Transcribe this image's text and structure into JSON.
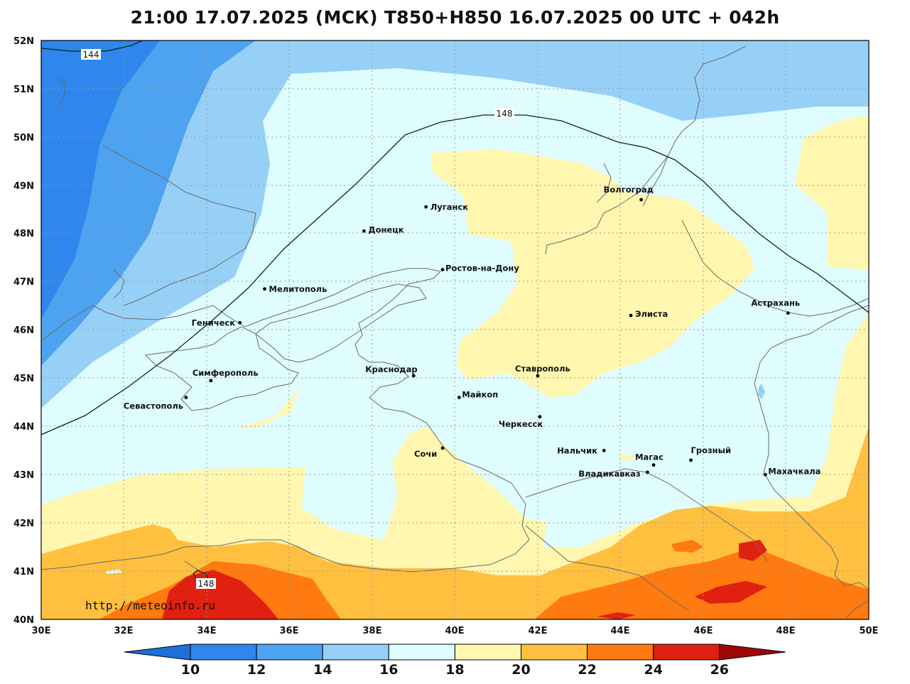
{
  "title": "21:00 17.07.2025 (МСК) T850+H850 16.07.2025 00 UTC + 042h",
  "watermark": "http://meteoinfo.ru",
  "axes": {
    "lat_labels": [
      "52N",
      "51N",
      "50N",
      "49N",
      "48N",
      "47N",
      "46N",
      "45N",
      "44N",
      "43N",
      "42N",
      "41N",
      "40N"
    ],
    "lon_labels": [
      "30E",
      "32E",
      "34E",
      "36E",
      "38E",
      "40E",
      "42E",
      "44E",
      "46E",
      "48E",
      "50E"
    ]
  },
  "contour_labels": [
    "144",
    "148",
    "148"
  ],
  "legend": {
    "ticks": [
      "10",
      "12",
      "14",
      "16",
      "18",
      "20",
      "22",
      "24",
      "26"
    ],
    "colors": [
      "#1e6fd9",
      "#2f86ec",
      "#4da3f0",
      "#97d0f7",
      "#dffcff",
      "#fff7b0",
      "#ffc040",
      "#ff7a10",
      "#e02010",
      "#a00808"
    ]
  },
  "cities": [
    {
      "name": "Луганск",
      "lon": 39.3,
      "lat": 48.55
    },
    {
      "name": "Донецк",
      "lon": 37.8,
      "lat": 48.05
    },
    {
      "name": "Волгоград",
      "lon": 44.5,
      "lat": 48.7
    },
    {
      "name": "Ростов-на-Дону",
      "lon": 39.7,
      "lat": 47.25
    },
    {
      "name": "Мелитополь",
      "lon": 35.4,
      "lat": 46.85
    },
    {
      "name": "Элиста",
      "lon": 44.25,
      "lat": 46.3
    },
    {
      "name": "Астрахань",
      "lon": 48.05,
      "lat": 46.35
    },
    {
      "name": "Геническ",
      "lon": 34.8,
      "lat": 46.15
    },
    {
      "name": "Краснодар",
      "lon": 39.0,
      "lat": 45.05
    },
    {
      "name": "Ставрополь",
      "lon": 42.0,
      "lat": 45.05
    },
    {
      "name": "Симферополь",
      "lon": 34.1,
      "lat": 44.95
    },
    {
      "name": "Майкоп",
      "lon": 40.1,
      "lat": 44.6
    },
    {
      "name": "Севастополь",
      "lon": 33.5,
      "lat": 44.6
    },
    {
      "name": "Черкесск",
      "lon": 42.05,
      "lat": 44.2
    },
    {
      "name": "Сочи",
      "lon": 39.7,
      "lat": 43.55
    },
    {
      "name": "Нальчик",
      "lon": 43.6,
      "lat": 43.5
    },
    {
      "name": "Грозный",
      "lon": 45.7,
      "lat": 43.3
    },
    {
      "name": "Магас",
      "lon": 44.8,
      "lat": 43.2
    },
    {
      "name": "Владикавказ",
      "lon": 44.65,
      "lat": 43.05
    },
    {
      "name": "Махачкала",
      "lon": 47.5,
      "lat": 43.0
    }
  ]
}
